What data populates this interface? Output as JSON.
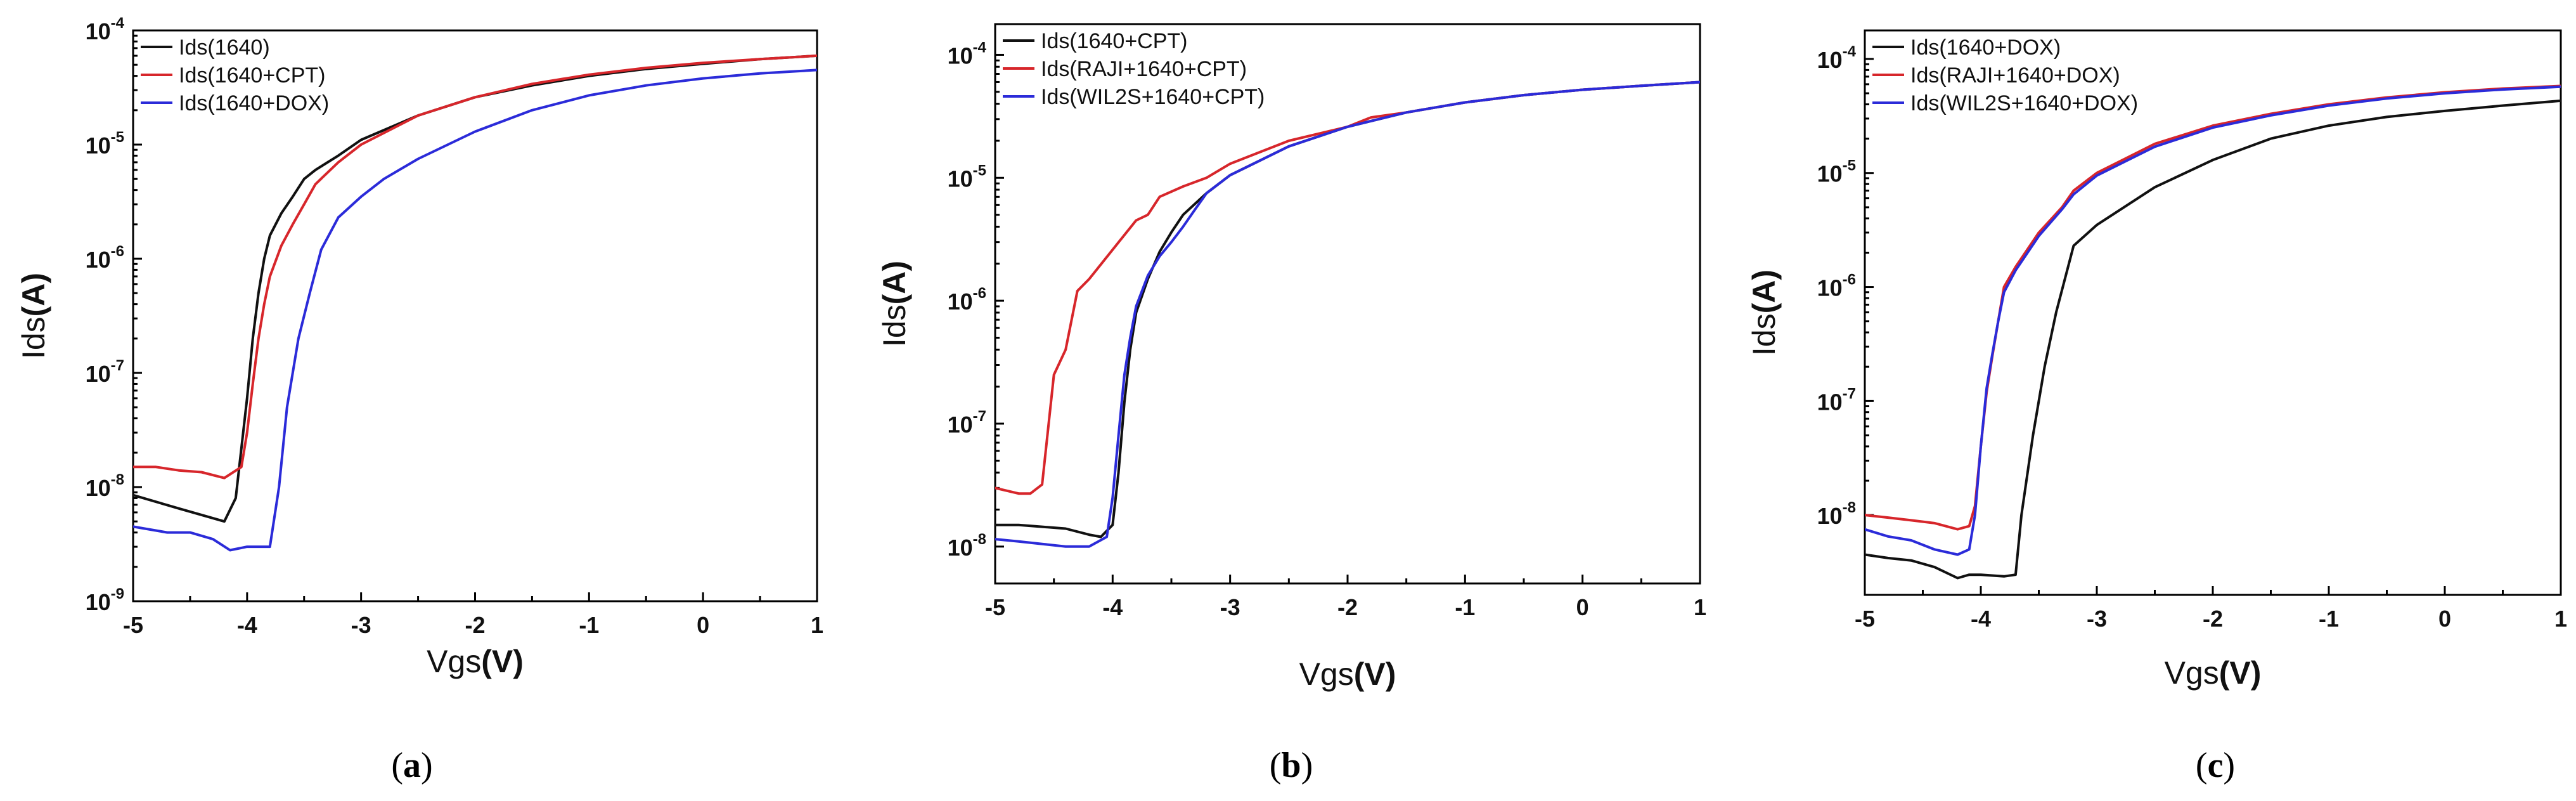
{
  "colors": {
    "black": "#111111",
    "red": "#d7262b",
    "blue": "#2b2bd9"
  },
  "chart_data": [
    {
      "type": "line",
      "id": "a",
      "caption": "(a)",
      "caption_letter": "a",
      "xlabel": "Vgs",
      "xlabel_unit": "(V)",
      "ylabel": "Ids",
      "ylabel_unit": "(A)",
      "y_scale": "log",
      "xlim": [
        -5,
        1
      ],
      "ylim_exp": [
        -9,
        -4
      ],
      "x_ticks": [
        "-5",
        "-4",
        "-3",
        "-2",
        "-1",
        "0",
        "1"
      ],
      "y_tick_exps": [
        "-9",
        "-8",
        "-7",
        "-6",
        "-5",
        "-4"
      ],
      "legend": "top-left",
      "series": [
        {
          "name": "Ids(1640)",
          "color": "#111111",
          "x": [
            -5,
            -4.6,
            -4.2,
            -4.1,
            -4.0,
            -3.95,
            -3.9,
            -3.85,
            -3.8,
            -3.7,
            -3.6,
            -3.5,
            -3.4,
            -3.2,
            -3.0,
            -2.5,
            -2.0,
            -1.5,
            -1.0,
            -0.5,
            0,
            0.5,
            1
          ],
          "y": [
            8.5e-09,
            6.5e-09,
            5e-09,
            8e-09,
            6e-08,
            2e-07,
            5e-07,
            1e-06,
            1.6e-06,
            2.5e-06,
            3.5e-06,
            5e-06,
            6e-06,
            8e-06,
            1.1e-05,
            1.8e-05,
            2.6e-05,
            3.3e-05,
            4e-05,
            4.6e-05,
            5.1e-05,
            5.6e-05,
            6e-05
          ]
        },
        {
          "name": "Ids(1640+CPT)",
          "color": "#d7262b",
          "x": [
            -5,
            -4.8,
            -4.6,
            -4.4,
            -4.2,
            -4.05,
            -4.0,
            -3.95,
            -3.9,
            -3.85,
            -3.8,
            -3.7,
            -3.6,
            -3.5,
            -3.4,
            -3.2,
            -3.0,
            -2.5,
            -2.0,
            -1.5,
            -1.0,
            -0.5,
            0,
            0.5,
            1
          ],
          "y": [
            1.5e-08,
            1.5e-08,
            1.4e-08,
            1.35e-08,
            1.2e-08,
            1.5e-08,
            3e-08,
            8e-08,
            2e-07,
            4e-07,
            7e-07,
            1.3e-06,
            2e-06,
            3e-06,
            4.5e-06,
            7e-06,
            1e-05,
            1.8e-05,
            2.6e-05,
            3.4e-05,
            4.1e-05,
            4.7e-05,
            5.2e-05,
            5.6e-05,
            6e-05
          ]
        },
        {
          "name": "Ids(1640+DOX)",
          "color": "#2b2bd9",
          "x": [
            -5,
            -4.7,
            -4.5,
            -4.3,
            -4.15,
            -4.0,
            -3.8,
            -3.72,
            -3.65,
            -3.55,
            -3.45,
            -3.35,
            -3.2,
            -3.0,
            -2.8,
            -2.5,
            -2.0,
            -1.5,
            -1.0,
            -0.5,
            0,
            0.5,
            1
          ],
          "y": [
            4.5e-09,
            4e-09,
            4e-09,
            3.5e-09,
            2.8e-09,
            3e-09,
            3e-09,
            1e-08,
            5e-08,
            2e-07,
            5e-07,
            1.2e-06,
            2.3e-06,
            3.5e-06,
            5e-06,
            7.5e-06,
            1.3e-05,
            2e-05,
            2.7e-05,
            3.3e-05,
            3.8e-05,
            4.2e-05,
            4.5e-05
          ]
        }
      ]
    },
    {
      "type": "line",
      "id": "b",
      "caption": "(b)",
      "caption_letter": "b",
      "xlabel": "Vgs",
      "xlabel_unit": "(V)",
      "ylabel": "Ids",
      "ylabel_unit": "(A)",
      "y_scale": "log",
      "xlim": [
        -5,
        1
      ],
      "ylim_exp": [
        -8.3,
        -3.75
      ],
      "x_ticks": [
        "-5",
        "-4",
        "-3",
        "-2",
        "-1",
        "0",
        "1"
      ],
      "y_tick_exps": [
        "-8",
        "-7",
        "-6",
        "-5",
        "-4"
      ],
      "legend": "top-left",
      "series": [
        {
          "name": "Ids(1640+CPT)",
          "color": "#111111",
          "x": [
            -5,
            -4.8,
            -4.6,
            -4.4,
            -4.2,
            -4.1,
            -4.0,
            -3.95,
            -3.9,
            -3.85,
            -3.8,
            -3.7,
            -3.6,
            -3.5,
            -3.4,
            -3.2,
            -3.0,
            -2.5,
            -2.0,
            -1.5,
            -1.0,
            -0.5,
            0,
            0.5,
            1
          ],
          "y": [
            1.5e-08,
            1.5e-08,
            1.45e-08,
            1.4e-08,
            1.25e-08,
            1.2e-08,
            1.5e-08,
            4e-08,
            1.5e-07,
            4e-07,
            8e-07,
            1.5e-06,
            2.5e-06,
            3.6e-06,
            5e-06,
            7.5e-06,
            1.05e-05,
            1.8e-05,
            2.6e-05,
            3.4e-05,
            4.1e-05,
            4.7e-05,
            5.2e-05,
            5.6e-05,
            6e-05
          ]
        },
        {
          "name": "Ids(RAJI+1640+CPT)",
          "color": "#d7262b",
          "x": [
            -5,
            -4.8,
            -4.7,
            -4.6,
            -4.5,
            -4.4,
            -4.3,
            -4.2,
            -4.0,
            -3.8,
            -3.7,
            -3.6,
            -3.4,
            -3.2,
            -3.0,
            -2.5,
            -2.0,
            -1.8,
            -1.5,
            -1.0,
            -0.5,
            0,
            0.5,
            1
          ],
          "y": [
            3e-08,
            2.7e-08,
            2.7e-08,
            3.2e-08,
            2.5e-07,
            4e-07,
            1.2e-06,
            1.5e-06,
            2.6e-06,
            4.5e-06,
            5e-06,
            7e-06,
            8.5e-06,
            1e-05,
            1.3e-05,
            2e-05,
            2.6e-05,
            3.1e-05,
            3.4e-05,
            4.1e-05,
            4.7e-05,
            5.2e-05,
            5.6e-05,
            6e-05
          ]
        },
        {
          "name": "Ids(WIL2S+1640+CPT)",
          "color": "#2b2bd9",
          "x": [
            -5,
            -4.8,
            -4.6,
            -4.4,
            -4.2,
            -4.05,
            -4.0,
            -3.95,
            -3.9,
            -3.85,
            -3.8,
            -3.7,
            -3.6,
            -3.5,
            -3.4,
            -3.3,
            -3.2,
            -3.0,
            -2.5,
            -2.0,
            -1.5,
            -1.0,
            -0.5,
            0,
            0.5,
            1
          ],
          "y": [
            1.15e-08,
            1.1e-08,
            1.05e-08,
            1e-08,
            1e-08,
            1.2e-08,
            2.5e-08,
            8e-08,
            2.5e-07,
            5e-07,
            9e-07,
            1.6e-06,
            2.3e-06,
            3e-06,
            4e-06,
            5.5e-06,
            7.5e-06,
            1.05e-05,
            1.8e-05,
            2.6e-05,
            3.4e-05,
            4.1e-05,
            4.7e-05,
            5.2e-05,
            5.6e-05,
            6e-05
          ]
        }
      ]
    },
    {
      "type": "line",
      "id": "c",
      "caption": "(c)",
      "caption_letter": "c",
      "xlabel": "Vgs",
      "xlabel_unit": "(V)",
      "ylabel": "Ids",
      "ylabel_unit": "(A)",
      "y_scale": "log",
      "xlim": [
        -5,
        1
      ],
      "ylim_exp": [
        -8.7,
        -3.75
      ],
      "x_ticks": [
        "-5",
        "-4",
        "-3",
        "-2",
        "-1",
        "0",
        "1"
      ],
      "y_tick_exps": [
        "-8",
        "-7",
        "-6",
        "-5",
        "-4"
      ],
      "legend": "top-left",
      "series": [
        {
          "name": "Ids(1640+DOX)",
          "color": "#111111",
          "x": [
            -5,
            -4.8,
            -4.6,
            -4.4,
            -4.2,
            -4.1,
            -4.0,
            -3.8,
            -3.7,
            -3.65,
            -3.55,
            -3.45,
            -3.35,
            -3.2,
            -3.0,
            -2.5,
            -2.0,
            -1.5,
            -1.0,
            -0.5,
            0,
            0.5,
            1
          ],
          "y": [
            4.5e-09,
            4.2e-09,
            4e-09,
            3.5e-09,
            2.8e-09,
            3e-09,
            3e-09,
            2.9e-09,
            3e-09,
            1e-08,
            5e-08,
            2e-07,
            6e-07,
            2.3e-06,
            3.5e-06,
            7.5e-06,
            1.3e-05,
            2e-05,
            2.6e-05,
            3.1e-05,
            3.5e-05,
            3.9e-05,
            4.3e-05
          ]
        },
        {
          "name": "Ids(RAJI+1640+DOX)",
          "color": "#d7262b",
          "x": [
            -5,
            -4.8,
            -4.6,
            -4.4,
            -4.2,
            -4.1,
            -4.05,
            -4.0,
            -3.95,
            -3.9,
            -3.85,
            -3.8,
            -3.7,
            -3.5,
            -3.3,
            -3.2,
            -3.0,
            -2.5,
            -2.0,
            -1.5,
            -1.0,
            -0.5,
            0,
            0.5,
            1
          ],
          "y": [
            1e-08,
            9.5e-09,
            9e-09,
            8.5e-09,
            7.5e-09,
            8e-09,
            1.2e-08,
            4e-08,
            1.2e-07,
            2.5e-07,
            5e-07,
            1e-06,
            1.5e-06,
            3e-06,
            5e-06,
            7e-06,
            1e-05,
            1.8e-05,
            2.6e-05,
            3.3e-05,
            4e-05,
            4.6e-05,
            5.1e-05,
            5.5e-05,
            5.8e-05
          ]
        },
        {
          "name": "Ids(WIL2S+1640+DOX)",
          "color": "#2b2bd9",
          "x": [
            -5,
            -4.8,
            -4.6,
            -4.4,
            -4.2,
            -4.1,
            -4.05,
            -4.0,
            -3.95,
            -3.9,
            -3.85,
            -3.8,
            -3.7,
            -3.5,
            -3.3,
            -3.2,
            -3.0,
            -2.5,
            -2.0,
            -1.5,
            -1.0,
            -0.5,
            0,
            0.5,
            1
          ],
          "y": [
            7.5e-09,
            6.5e-09,
            6e-09,
            5e-09,
            4.5e-09,
            5e-09,
            1e-08,
            4e-08,
            1.3e-07,
            2.6e-07,
            5e-07,
            9e-07,
            1.4e-06,
            2.8e-06,
            4.8e-06,
            6.5e-06,
            9.5e-06,
            1.7e-05,
            2.5e-05,
            3.2e-05,
            3.9e-05,
            4.5e-05,
            5e-05,
            5.4e-05,
            5.7e-05
          ]
        }
      ]
    }
  ]
}
